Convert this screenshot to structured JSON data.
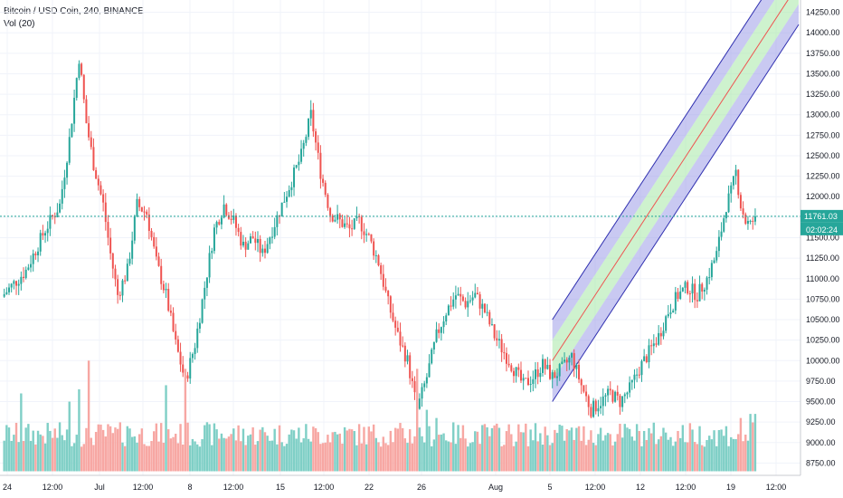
{
  "header": {
    "title": "Bitcoin / USD Coin, 240, BINANCE",
    "volume_label": "Vol (20)"
  },
  "price_scale": {
    "ticks": [
      "14250.00",
      "14000.00",
      "13750.00",
      "13500.00",
      "13250.00",
      "13000.00",
      "12750.00",
      "12500.00",
      "12250.00",
      "12000.00",
      "11750.00",
      "11500.00",
      "11250.00",
      "11000.00",
      "10750.00",
      "10500.00",
      "10250.00",
      "10000.00",
      "9750.00",
      "9500.00",
      "9250.00",
      "9000.00",
      "8750.00"
    ],
    "last_price": "11761.03",
    "countdown": "02:02:24"
  },
  "time_scale": {
    "labels": [
      "24",
      "12:00",
      "Jul",
      "12:00",
      "8",
      "12:00",
      "15",
      "12:00",
      "22",
      "26",
      "Aug",
      "5",
      "12:00",
      "12",
      "12:00",
      "19",
      "12:00"
    ]
  },
  "colors": {
    "up": "#26a69a",
    "down": "#ef5350",
    "up_volume": "#7fcfc6",
    "down_volume": "#f7a7a3",
    "channel_outer": "#9c9ce8",
    "channel_inner": "#a5e8a5",
    "channel_line": "#3030b0",
    "last_price_line": "#26a69a",
    "grid": "#f0f3fa"
  },
  "chart_data": {
    "type": "candlestick",
    "symbol": "Bitcoin / USD Coin",
    "interval": "240",
    "exchange": "BINANCE",
    "ylim": [
      8600,
      14400
    ],
    "last_price": 11761.03,
    "x_labels": [
      "24",
      "12:00",
      "Jul",
      "12:00",
      "8",
      "12:00",
      "15",
      "12:00",
      "22",
      "26",
      "Aug",
      "5",
      "12:00",
      "12",
      "12:00",
      "19",
      "12:00"
    ],
    "close_path": [
      [
        0,
        10780
      ],
      [
        10,
        11100
      ],
      [
        18,
        11600
      ],
      [
        24,
        11900
      ],
      [
        28,
        12700
      ],
      [
        32,
        13700
      ],
      [
        35,
        12900
      ],
      [
        38,
        12400
      ],
      [
        42,
        11900
      ],
      [
        45,
        11300
      ],
      [
        48,
        10800
      ],
      [
        52,
        11100
      ],
      [
        56,
        11900
      ],
      [
        60,
        11800
      ],
      [
        64,
        11200
      ],
      [
        68,
        10800
      ],
      [
        72,
        10200
      ],
      [
        76,
        9750
      ],
      [
        80,
        10200
      ],
      [
        84,
        10900
      ],
      [
        88,
        11600
      ],
      [
        92,
        11900
      ],
      [
        96,
        11700
      ],
      [
        100,
        11400
      ],
      [
        104,
        11500
      ],
      [
        108,
        11300
      ],
      [
        112,
        11600
      ],
      [
        116,
        11900
      ],
      [
        120,
        12200
      ],
      [
        124,
        12500
      ],
      [
        128,
        13000
      ],
      [
        132,
        12300
      ],
      [
        136,
        11800
      ],
      [
        140,
        11700
      ],
      [
        144,
        11600
      ],
      [
        148,
        11700
      ],
      [
        152,
        11500
      ],
      [
        156,
        11200
      ],
      [
        160,
        10700
      ],
      [
        164,
        10300
      ],
      [
        168,
        10000
      ],
      [
        172,
        9400
      ],
      [
        176,
        9800
      ],
      [
        180,
        10300
      ],
      [
        184,
        10600
      ],
      [
        188,
        10800
      ],
      [
        192,
        10700
      ],
      [
        196,
        10800
      ],
      [
        200,
        10600
      ],
      [
        204,
        10300
      ],
      [
        208,
        10100
      ],
      [
        212,
        9900
      ],
      [
        216,
        9700
      ],
      [
        220,
        9800
      ],
      [
        224,
        9950
      ],
      [
        228,
        9800
      ],
      [
        232,
        9900
      ],
      [
        236,
        10050
      ],
      [
        240,
        9700
      ],
      [
        244,
        9400
      ],
      [
        248,
        9500
      ],
      [
        252,
        9600
      ],
      [
        256,
        9500
      ],
      [
        260,
        9650
      ],
      [
        264,
        9900
      ],
      [
        268,
        10100
      ],
      [
        272,
        10300
      ],
      [
        276,
        10600
      ],
      [
        280,
        10800
      ],
      [
        284,
        10900
      ],
      [
        288,
        10800
      ],
      [
        292,
        11000
      ],
      [
        296,
        11300
      ],
      [
        298,
        11600
      ],
      [
        300,
        11900
      ],
      [
        302,
        12050
      ],
      [
        304,
        12300
      ],
      [
        306,
        11900
      ],
      [
        308,
        11700
      ],
      [
        310,
        11650
      ],
      [
        312,
        11761
      ]
    ],
    "volume": {
      "typical": 9100,
      "spikes": [
        [
          8,
          9600
        ],
        [
          28,
          9500
        ],
        [
          32,
          9650
        ],
        [
          36,
          10000
        ],
        [
          52,
          9200
        ],
        [
          68,
          9700
        ],
        [
          76,
          9900
        ],
        [
          172,
          9900
        ],
        [
          176,
          9400
        ],
        [
          180,
          9300
        ],
        [
          244,
          9150
        ],
        [
          300,
          9200
        ],
        [
          306,
          9300
        ],
        [
          310,
          9350
        ],
        [
          312,
          9350
        ]
      ]
    },
    "regression_channel": {
      "start": {
        "x": 228,
        "y": 10000
      },
      "end": {
        "x": 330,
        "y": 14600
      },
      "inner_offset": 250,
      "outer_offset": 500
    },
    "grid": true,
    "legend_placement": "top-left"
  }
}
